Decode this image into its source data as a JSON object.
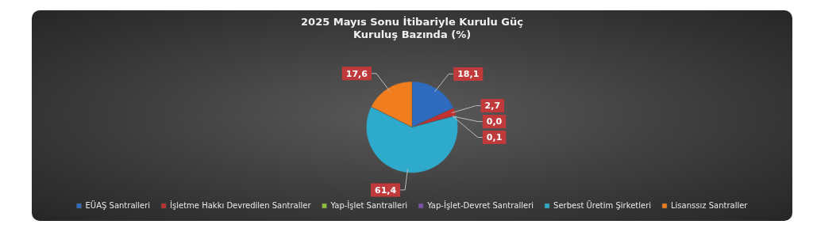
{
  "chart_data": {
    "type": "pie",
    "title": "2025 Mayıs Sonu İtibariyle Kurulu Güç\nKuruluş Bazında (%)",
    "categories": [
      "EÜAŞ Santralleri",
      "İşletme Hakkı Devredilen Santraller",
      "Yap-İşlet Santralleri",
      "Yap-İşlet-Devret Santralleri",
      "Serbest Üretim Şirketleri",
      "Lisanssız Santraller"
    ],
    "values": [
      18.1,
      2.7,
      0.0,
      0.1,
      61.4,
      17.6
    ],
    "colors": [
      "#2e6bbf",
      "#c0312f",
      "#8fbf3a",
      "#7a52a8",
      "#2eaacc",
      "#f07d1e"
    ],
    "value_labels": [
      "18,1",
      "2,7",
      "0,0",
      "0,1",
      "61,4",
      "17,6"
    ],
    "legend": "bottom"
  }
}
